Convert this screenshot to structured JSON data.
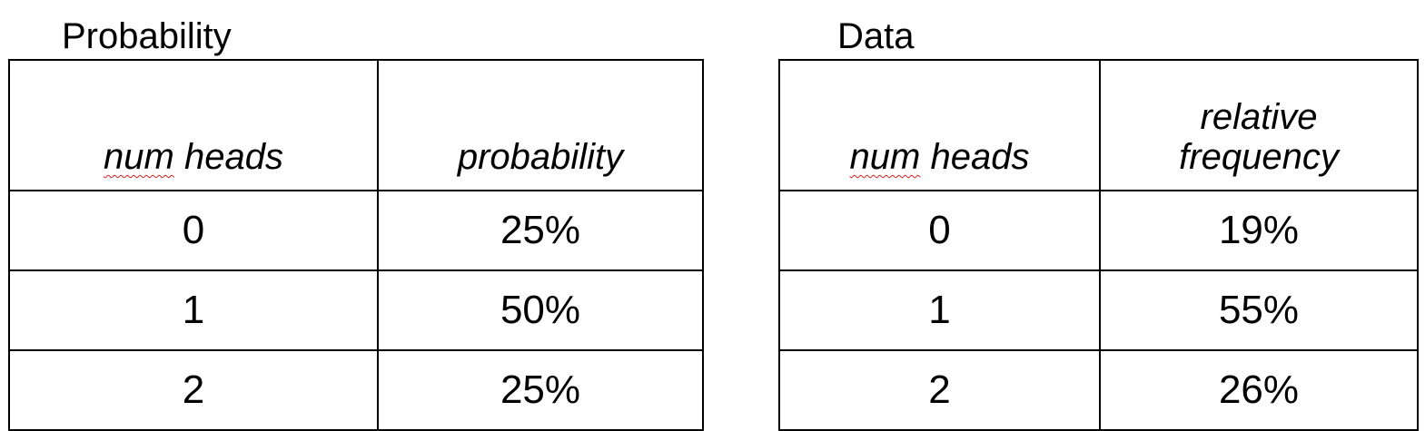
{
  "left": {
    "caption": "Probability",
    "header_word1": "num",
    "header_word2": " heads",
    "header_col2": "probability",
    "rows": [
      {
        "heads": "0",
        "value": "25%"
      },
      {
        "heads": "1",
        "value": "50%"
      },
      {
        "heads": "2",
        "value": "25%"
      }
    ]
  },
  "right": {
    "caption": "Data",
    "header_word1": "num",
    "header_word2": " heads",
    "header_col2_line1": "relative",
    "header_col2_line2": "frequency",
    "rows": [
      {
        "heads": "0",
        "value": "19%"
      },
      {
        "heads": "1",
        "value": "55%"
      },
      {
        "heads": "2",
        "value": "26%"
      }
    ]
  },
  "colors": {
    "text": "#000000",
    "border": "#000000",
    "spellcheck_underline": "#d62020",
    "background": "#ffffff"
  }
}
